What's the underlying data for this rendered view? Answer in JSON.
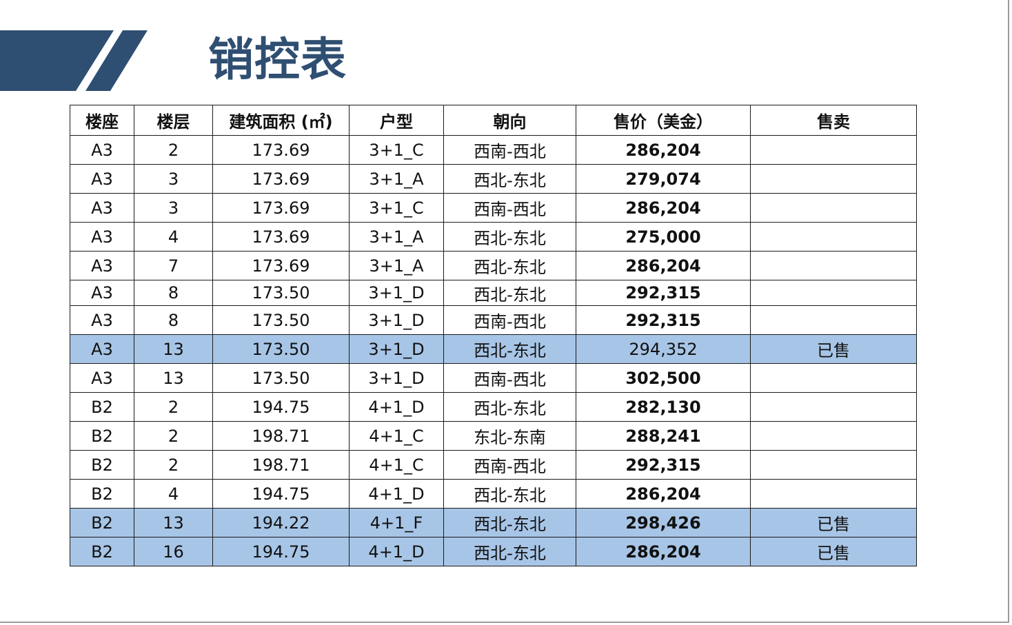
{
  "title": "销控表",
  "colors": {
    "title": "#2f4f72",
    "accent_band": "#2f4f72",
    "sold_row": "#a7c5e6",
    "border": "#1a1a1a"
  },
  "table": {
    "headers": [
      "楼座",
      "楼层",
      "建筑面积 (㎡)",
      "户型",
      "朝向",
      "售价（美金）",
      "售卖"
    ],
    "rows": [
      [
        "A3",
        "2",
        "173.69",
        "3+1_C",
        "西南-西北",
        "286,204",
        ""
      ],
      [
        "A3",
        "3",
        "173.69",
        "3+1_A",
        "西北-东北",
        "279,074",
        ""
      ],
      [
        "A3",
        "3",
        "173.69",
        "3+1_C",
        "西南-西北",
        "286,204",
        ""
      ],
      [
        "A3",
        "4",
        "173.69",
        "3+1_A",
        "西北-东北",
        "275,000",
        ""
      ],
      [
        "A3",
        "7",
        "173.69",
        "3+1_A",
        "西北-东北",
        "286,204",
        ""
      ],
      [
        "A3",
        "8",
        "173.50",
        "3+1_D",
        "西北-东北",
        "292,315",
        ""
      ],
      [
        "A3",
        "8",
        "173.50",
        "3+1_D",
        "西南-西北",
        "292,315",
        ""
      ],
      [
        "A3",
        "13",
        "173.50",
        "3+1_D",
        "西北-东北",
        "294,352",
        "已售"
      ],
      [
        "A3",
        "13",
        "173.50",
        "3+1_D",
        "西南-西北",
        "302,500",
        ""
      ],
      [
        "B2",
        "2",
        "194.75",
        "4+1_D",
        "西北-东北",
        "282,130",
        ""
      ],
      [
        "B2",
        "2",
        "198.71",
        "4+1_C",
        "东北-东南",
        "288,241",
        ""
      ],
      [
        "B2",
        "2",
        "198.71",
        "4+1_C",
        "西南-西北",
        "292,315",
        ""
      ],
      [
        "B2",
        "4",
        "194.75",
        "4+1_D",
        "西北-东北",
        "286,204",
        ""
      ],
      [
        "B2",
        "13",
        "194.22",
        "4+1_F",
        "西北-东北",
        "298,426",
        "已售"
      ],
      [
        "B2",
        "16",
        "194.75",
        "4+1_D",
        "西北-东北",
        "286,204",
        "已售"
      ]
    ]
  }
}
